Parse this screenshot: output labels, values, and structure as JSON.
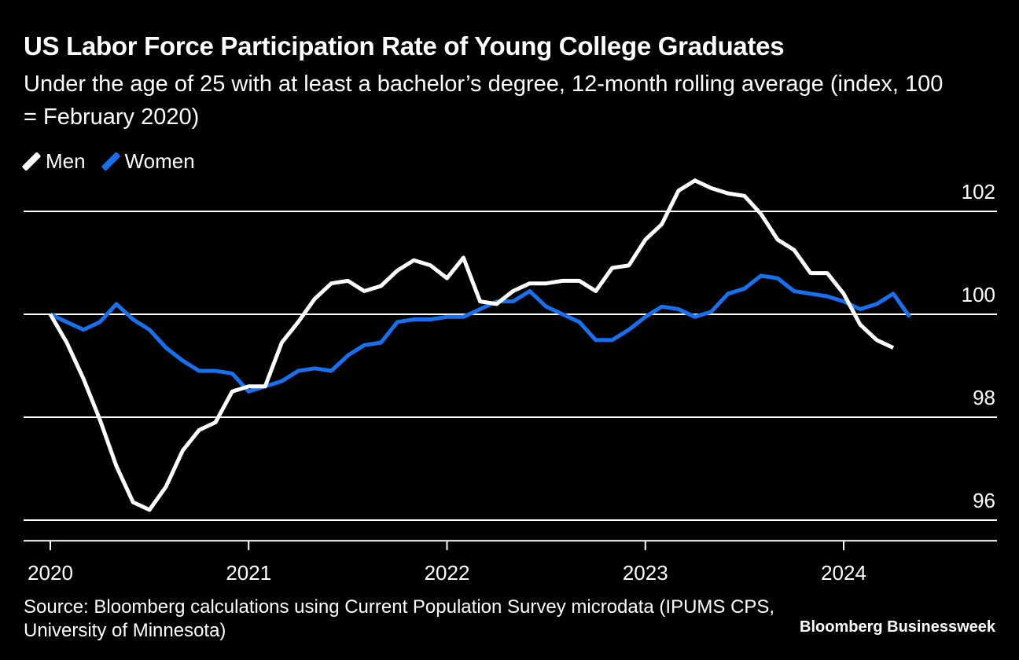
{
  "header": {
    "title": "US Labor Force Participation Rate of Young College Graduates",
    "subtitle": "Under the age of 25 with at least a bachelor’s degree, 12-month rolling average (index, 100 = February 2020)"
  },
  "footer": {
    "source": "Source: Bloomberg calculations using Current Population Survey microdata (IPUMS CPS, University of Minnesota)",
    "brand": "Bloomberg Businessweek"
  },
  "colors": {
    "background": "#000000",
    "men": "#ffffff",
    "women": "#1670f0",
    "grid": "#ffffff"
  },
  "chart_data": {
    "type": "line",
    "title": "US Labor Force Participation Rate of Young College Graduates",
    "xlabel": "",
    "ylabel": "",
    "ylim": [
      95.6,
      103
    ],
    "xlim": [
      2019.95,
      2024.85
    ],
    "y_ticks": [
      96,
      98,
      100,
      102
    ],
    "x_ticks": [
      2020,
      2021,
      2022,
      2023,
      2024
    ],
    "x_tick_labels": [
      "2020",
      "2021",
      "2022",
      "2023",
      "2024"
    ],
    "y_tick_labels": [
      "96",
      "98",
      "100",
      "102"
    ],
    "legend": "top-left",
    "grid": true,
    "x": [
      2020.0,
      2020.083,
      2020.167,
      2020.25,
      2020.333,
      2020.417,
      2020.5,
      2020.583,
      2020.667,
      2020.75,
      2020.833,
      2020.917,
      2021.0,
      2021.083,
      2021.167,
      2021.25,
      2021.333,
      2021.417,
      2021.5,
      2021.583,
      2021.667,
      2021.75,
      2021.833,
      2021.917,
      2022.0,
      2022.083,
      2022.167,
      2022.25,
      2022.333,
      2022.417,
      2022.5,
      2022.583,
      2022.667,
      2022.75,
      2022.833,
      2022.917,
      2023.0,
      2023.083,
      2023.167,
      2023.25,
      2023.333,
      2023.417,
      2023.5,
      2023.583,
      2023.667,
      2023.75,
      2023.833,
      2023.917,
      2024.0,
      2024.083,
      2024.167,
      2024.25,
      2024.333
    ],
    "series": [
      {
        "name": "Men",
        "values": [
          100.0,
          99.45,
          98.75,
          97.95,
          97.05,
          96.35,
          96.2,
          96.65,
          97.35,
          97.75,
          97.9,
          98.5,
          98.6,
          98.6,
          99.45,
          99.85,
          100.3,
          100.6,
          100.65,
          100.45,
          100.55,
          100.85,
          101.05,
          100.95,
          100.7,
          101.1,
          100.25,
          100.2,
          100.45,
          100.6,
          100.6,
          100.65,
          100.65,
          100.45,
          100.9,
          100.95,
          101.45,
          101.75,
          102.4,
          102.6,
          102.45,
          102.35,
          102.3,
          101.95,
          101.45,
          101.25,
          100.8,
          100.8,
          100.4,
          99.8,
          99.5,
          99.35,
          null
        ],
        "men_note": ""
      },
      {
        "name": "Women",
        "values": [
          100.0,
          99.85,
          99.7,
          99.85,
          100.2,
          99.9,
          99.7,
          99.35,
          99.1,
          98.9,
          98.9,
          98.85,
          98.5,
          98.6,
          98.7,
          98.9,
          98.95,
          98.9,
          99.2,
          99.4,
          99.45,
          99.85,
          99.9,
          99.9,
          99.95,
          99.95,
          100.1,
          100.25,
          100.25,
          100.45,
          100.15,
          100.0,
          99.85,
          99.5,
          99.5,
          99.7,
          99.95,
          100.15,
          100.1,
          99.95,
          100.05,
          100.4,
          100.5,
          100.75,
          100.7,
          100.45,
          100.4,
          100.35,
          100.25,
          100.1,
          100.2,
          100.4,
          99.95
        ]
      }
    ]
  }
}
